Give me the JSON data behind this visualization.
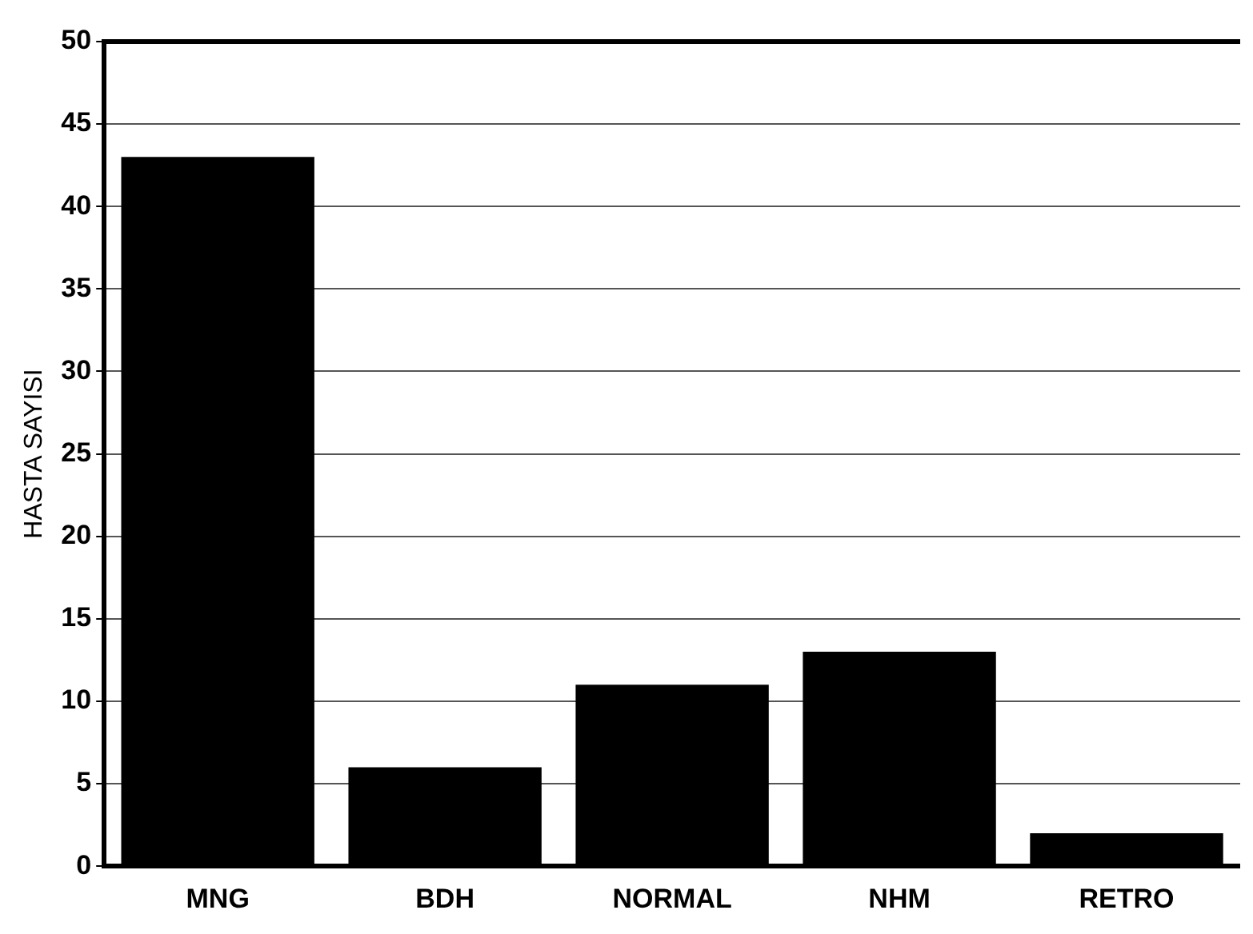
{
  "chart_data": {
    "type": "bar",
    "ylabel": "HASTA SAYISI",
    "categories": [
      "MNG",
      "BDH",
      "NORMAL",
      "NHM",
      "RETRO"
    ],
    "values": [
      43,
      6,
      11,
      13,
      2
    ],
    "color": "#000000",
    "ylim": [
      0,
      50
    ],
    "yticks": [
      0,
      5,
      10,
      15,
      20,
      25,
      30,
      35,
      40,
      45,
      50
    ],
    "grid": "y",
    "legend": false
  }
}
